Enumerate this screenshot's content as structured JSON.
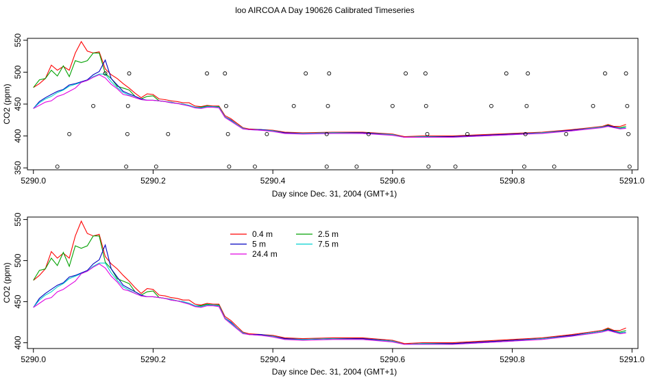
{
  "page_title": "loo AIRCOA A  Day 190626  Calibrated Timeseries",
  "chart_data": [
    {
      "type": "line",
      "xlabel": "Day since Dec. 31, 2004 (GMT+1)",
      "ylabel": "CO2 (ppm)",
      "xlim": [
        5289.99,
        5291.01
      ],
      "ylim": [
        347,
        553
      ],
      "x_ticks": [
        5290.0,
        5290.2,
        5290.4,
        5290.6,
        5290.8,
        5291.0
      ],
      "x_tick_labels": [
        "5290.0",
        "5290.2",
        "5290.4",
        "5290.6",
        "5290.8",
        "5291.0"
      ],
      "y_ticks": [
        350,
        400,
        450,
        500,
        550
      ],
      "y_tick_labels": [
        "350",
        "400",
        "450",
        "500",
        "550"
      ],
      "legend": false,
      "x": [
        5290.0,
        5290.01,
        5290.02,
        5290.03,
        5290.04,
        5290.05,
        5290.06,
        5290.07,
        5290.08,
        5290.09,
        5290.1,
        5290.11,
        5290.12,
        5290.13,
        5290.14,
        5290.15,
        5290.16,
        5290.17,
        5290.18,
        5290.19,
        5290.2,
        5290.21,
        5290.22,
        5290.23,
        5290.24,
        5290.25,
        5290.26,
        5290.27,
        5290.28,
        5290.29,
        5290.3,
        5290.31,
        5290.32,
        5290.33,
        5290.34,
        5290.35,
        5290.36,
        5290.38,
        5290.4,
        5290.42,
        5290.45,
        5290.5,
        5290.55,
        5290.6,
        5290.62,
        5290.65,
        5290.7,
        5290.75,
        5290.8,
        5290.85,
        5290.9,
        5290.93,
        5290.95,
        5290.96,
        5290.97,
        5290.98,
        5290.99
      ],
      "series": [
        {
          "name": "0.4 m",
          "color": "#ff0000",
          "values": [
            476,
            482,
            490,
            511,
            503,
            509,
            503,
            530,
            548,
            533,
            530,
            532,
            505,
            496,
            490,
            482,
            475,
            467,
            460,
            466,
            465,
            458,
            457,
            455,
            454,
            452,
            452,
            447,
            446,
            448,
            447,
            447,
            432,
            427,
            420,
            413,
            411,
            410,
            409,
            406,
            405,
            406,
            406,
            403,
            399,
            400,
            400,
            402,
            404,
            406,
            410,
            413,
            415,
            418,
            415,
            415,
            418
          ]
        },
        {
          "name": "2.5 m",
          "color": "#00a000",
          "values": [
            476,
            488,
            490,
            503,
            494,
            510,
            493,
            518,
            515,
            518,
            530,
            530,
            498,
            490,
            478,
            475,
            472,
            462,
            458,
            462,
            463,
            455,
            454,
            453,
            451,
            450,
            448,
            445,
            445,
            447,
            446,
            446,
            430,
            425,
            418,
            412,
            410,
            410,
            408,
            405,
            404,
            405,
            405,
            402,
            398,
            399,
            399,
            401,
            403,
            405,
            409,
            412,
            414,
            417,
            414,
            413,
            415
          ]
        },
        {
          "name": "5 m",
          "color": "#0000c0",
          "values": [
            443,
            454,
            460,
            465,
            470,
            473,
            480,
            482,
            485,
            488,
            496,
            501,
            519,
            490,
            480,
            470,
            466,
            462,
            458,
            456,
            456,
            455,
            454,
            452,
            451,
            450,
            448,
            445,
            444,
            446,
            446,
            445,
            430,
            425,
            418,
            412,
            410,
            410,
            408,
            405,
            404,
            405,
            405,
            402,
            398,
            399,
            399,
            401,
            403,
            405,
            409,
            412,
            414,
            416,
            414,
            412,
            413
          ]
        },
        {
          "name": "7.5 m",
          "color": "#00d0d0",
          "values": [
            443,
            452,
            458,
            462,
            468,
            472,
            478,
            481,
            484,
            487,
            493,
            497,
            497,
            485,
            476,
            468,
            464,
            460,
            457,
            456,
            456,
            455,
            454,
            453,
            451,
            450,
            448,
            445,
            444,
            446,
            446,
            445,
            430,
            424,
            418,
            412,
            410,
            409,
            408,
            404,
            404,
            405,
            404,
            402,
            398,
            399,
            398,
            400,
            402,
            405,
            408,
            412,
            414,
            415,
            413,
            412,
            413
          ]
        },
        {
          "name": "24.4 m",
          "color": "#e000e0",
          "values": [
            443,
            448,
            453,
            455,
            462,
            465,
            470,
            475,
            484,
            487,
            492,
            496,
            491,
            481,
            474,
            465,
            463,
            460,
            457,
            456,
            456,
            455,
            454,
            452,
            451,
            449,
            447,
            444,
            443,
            445,
            445,
            444,
            429,
            423,
            417,
            411,
            410,
            409,
            407,
            404,
            403,
            404,
            404,
            401,
            398,
            398,
            398,
            400,
            402,
            404,
            408,
            411,
            413,
            415,
            413,
            411,
            412
          ]
        }
      ],
      "scatter_points": [
        {
          "x": 5290.04,
          "y": 352
        },
        {
          "x": 5290.06,
          "y": 403
        },
        {
          "x": 5290.1,
          "y": 447
        },
        {
          "x": 5290.12,
          "y": 498
        },
        {
          "x": 5290.155,
          "y": 352
        },
        {
          "x": 5290.157,
          "y": 403
        },
        {
          "x": 5290.158,
          "y": 447
        },
        {
          "x": 5290.16,
          "y": 498
        },
        {
          "x": 5290.205,
          "y": 352
        },
        {
          "x": 5290.225,
          "y": 403
        },
        {
          "x": 5290.29,
          "y": 498
        },
        {
          "x": 5290.32,
          "y": 498
        },
        {
          "x": 5290.322,
          "y": 447
        },
        {
          "x": 5290.325,
          "y": 403
        },
        {
          "x": 5290.327,
          "y": 352
        },
        {
          "x": 5290.37,
          "y": 352
        },
        {
          "x": 5290.39,
          "y": 403
        },
        {
          "x": 5290.435,
          "y": 447
        },
        {
          "x": 5290.455,
          "y": 498
        },
        {
          "x": 5290.49,
          "y": 352
        },
        {
          "x": 5290.49,
          "y": 403
        },
        {
          "x": 5290.492,
          "y": 447
        },
        {
          "x": 5290.494,
          "y": 498
        },
        {
          "x": 5290.54,
          "y": 352
        },
        {
          "x": 5290.56,
          "y": 403
        },
        {
          "x": 5290.6,
          "y": 447
        },
        {
          "x": 5290.622,
          "y": 498
        },
        {
          "x": 5290.655,
          "y": 498
        },
        {
          "x": 5290.656,
          "y": 447
        },
        {
          "x": 5290.658,
          "y": 403
        },
        {
          "x": 5290.66,
          "y": 352
        },
        {
          "x": 5290.705,
          "y": 352
        },
        {
          "x": 5290.725,
          "y": 403
        },
        {
          "x": 5290.765,
          "y": 447
        },
        {
          "x": 5290.79,
          "y": 498
        },
        {
          "x": 5290.82,
          "y": 352
        },
        {
          "x": 5290.822,
          "y": 403
        },
        {
          "x": 5290.824,
          "y": 447
        },
        {
          "x": 5290.826,
          "y": 498
        },
        {
          "x": 5290.87,
          "y": 352
        },
        {
          "x": 5290.89,
          "y": 403
        },
        {
          "x": 5290.935,
          "y": 447
        },
        {
          "x": 5290.955,
          "y": 498
        },
        {
          "x": 5290.99,
          "y": 498
        },
        {
          "x": 5290.992,
          "y": 447
        },
        {
          "x": 5290.994,
          "y": 403
        },
        {
          "x": 5290.996,
          "y": 352
        }
      ]
    },
    {
      "type": "line",
      "xlabel": "Day since Dec. 31, 2004 (GMT+1)",
      "ylabel": "CO2 (ppm)",
      "xlim": [
        5289.99,
        5291.01
      ],
      "ylim": [
        393,
        553
      ],
      "x_ticks": [
        5290.0,
        5290.2,
        5290.4,
        5290.6,
        5290.8,
        5291.0
      ],
      "x_tick_labels": [
        "5290.0",
        "5290.2",
        "5290.4",
        "5290.6",
        "5290.8",
        "5291.0"
      ],
      "y_ticks": [
        400,
        450,
        500,
        550
      ],
      "y_tick_labels": [
        "400",
        "450",
        "500",
        "550"
      ],
      "legend": true,
      "legend_placement": "top-left",
      "legend_entries": [
        {
          "label": "0.4 m",
          "color": "#ff0000"
        },
        {
          "label": "2.5 m",
          "color": "#00a000"
        },
        {
          "label": "5 m",
          "color": "#0000c0"
        },
        {
          "label": "7.5 m",
          "color": "#00d0d0"
        },
        {
          "label": "24.4 m",
          "color": "#e000e0"
        }
      ],
      "x": [
        5290.0,
        5290.01,
        5290.02,
        5290.03,
        5290.04,
        5290.05,
        5290.06,
        5290.07,
        5290.08,
        5290.09,
        5290.1,
        5290.11,
        5290.12,
        5290.13,
        5290.14,
        5290.15,
        5290.16,
        5290.17,
        5290.18,
        5290.19,
        5290.2,
        5290.21,
        5290.22,
        5290.23,
        5290.24,
        5290.25,
        5290.26,
        5290.27,
        5290.28,
        5290.29,
        5290.3,
        5290.31,
        5290.32,
        5290.33,
        5290.34,
        5290.35,
        5290.36,
        5290.38,
        5290.4,
        5290.42,
        5290.45,
        5290.5,
        5290.55,
        5290.6,
        5290.62,
        5290.65,
        5290.7,
        5290.75,
        5290.8,
        5290.85,
        5290.9,
        5290.93,
        5290.95,
        5290.96,
        5290.97,
        5290.98,
        5290.99
      ],
      "series": [
        {
          "name": "0.4 m",
          "color": "#ff0000",
          "values": [
            476,
            482,
            490,
            511,
            503,
            509,
            503,
            530,
            548,
            533,
            530,
            532,
            505,
            496,
            490,
            482,
            475,
            467,
            460,
            466,
            465,
            458,
            457,
            455,
            454,
            452,
            452,
            447,
            446,
            448,
            447,
            447,
            432,
            427,
            420,
            413,
            411,
            410,
            409,
            406,
            405,
            406,
            406,
            403,
            399,
            400,
            400,
            402,
            404,
            406,
            410,
            413,
            415,
            418,
            415,
            415,
            418
          ]
        },
        {
          "name": "2.5 m",
          "color": "#00a000",
          "values": [
            476,
            488,
            490,
            503,
            494,
            510,
            493,
            518,
            515,
            518,
            530,
            530,
            498,
            490,
            478,
            475,
            472,
            462,
            458,
            462,
            463,
            455,
            454,
            453,
            451,
            450,
            448,
            445,
            445,
            447,
            446,
            446,
            430,
            425,
            418,
            412,
            410,
            410,
            408,
            405,
            404,
            405,
            405,
            402,
            398,
            399,
            399,
            401,
            403,
            405,
            409,
            412,
            414,
            417,
            414,
            413,
            415
          ]
        },
        {
          "name": "5 m",
          "color": "#0000c0",
          "values": [
            443,
            454,
            460,
            465,
            470,
            473,
            480,
            482,
            485,
            488,
            496,
            501,
            519,
            490,
            480,
            470,
            466,
            462,
            458,
            456,
            456,
            455,
            454,
            452,
            451,
            450,
            448,
            445,
            444,
            446,
            446,
            445,
            430,
            425,
            418,
            412,
            410,
            410,
            408,
            405,
            404,
            405,
            405,
            402,
            398,
            399,
            399,
            401,
            403,
            405,
            409,
            412,
            414,
            416,
            414,
            412,
            413
          ]
        },
        {
          "name": "7.5 m",
          "color": "#00d0d0",
          "values": [
            443,
            452,
            458,
            462,
            468,
            472,
            478,
            481,
            484,
            487,
            493,
            497,
            497,
            485,
            476,
            468,
            464,
            460,
            457,
            456,
            456,
            455,
            454,
            453,
            451,
            450,
            448,
            445,
            444,
            446,
            446,
            445,
            430,
            424,
            418,
            412,
            410,
            409,
            408,
            404,
            404,
            405,
            404,
            402,
            398,
            399,
            398,
            400,
            402,
            405,
            408,
            412,
            414,
            415,
            413,
            412,
            413
          ]
        },
        {
          "name": "24.4 m",
          "color": "#e000e0",
          "values": [
            443,
            448,
            453,
            455,
            462,
            465,
            470,
            475,
            484,
            487,
            492,
            496,
            491,
            481,
            474,
            465,
            463,
            460,
            457,
            456,
            456,
            455,
            454,
            452,
            451,
            449,
            447,
            444,
            443,
            445,
            445,
            444,
            429,
            423,
            417,
            411,
            410,
            409,
            407,
            404,
            403,
            404,
            404,
            401,
            398,
            398,
            398,
            400,
            402,
            404,
            408,
            411,
            413,
            415,
            413,
            411,
            412
          ]
        }
      ]
    }
  ]
}
